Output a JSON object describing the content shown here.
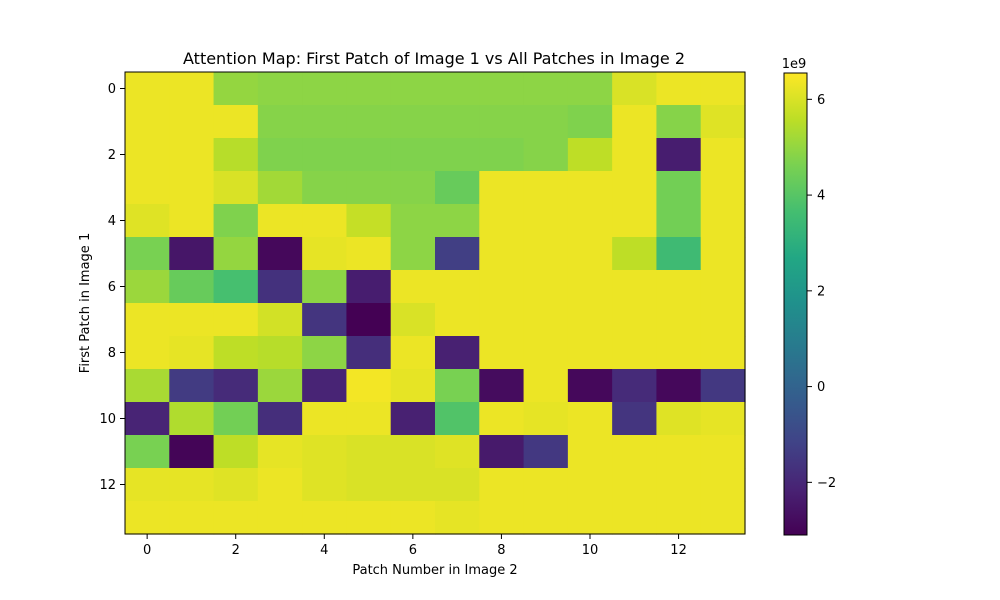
{
  "chart_data": {
    "type": "heatmap",
    "title": "Attention Map: First Patch of Image 1 vs All Patches in Image 2",
    "xlabel": "Patch Number in Image 2",
    "ylabel": "First Patch in Image 1",
    "x_ticks": [
      "0",
      "2",
      "4",
      "6",
      "8",
      "10",
      "12"
    ],
    "y_ticks": [
      "0",
      "2",
      "4",
      "6",
      "8",
      "10",
      "12"
    ],
    "colormap": "viridis",
    "colorbar": {
      "min": -3.1,
      "max": 6.55,
      "ticks": [
        "−2",
        "0",
        "2",
        "4",
        "6"
      ],
      "tick_values": [
        -2,
        0,
        2,
        4,
        6
      ],
      "multiplier": "1e9"
    },
    "grid": false,
    "values": [
      [
        6.3,
        6.3,
        5.0,
        4.9,
        4.9,
        4.9,
        4.9,
        4.9,
        4.9,
        4.9,
        4.9,
        6.0,
        6.3,
        6.3
      ],
      [
        6.3,
        6.3,
        6.3,
        4.8,
        4.8,
        4.8,
        4.8,
        4.8,
        4.8,
        4.8,
        4.7,
        6.3,
        4.8,
        6.1
      ],
      [
        6.3,
        6.3,
        5.5,
        4.7,
        4.7,
        4.7,
        4.7,
        4.7,
        4.7,
        4.8,
        5.6,
        6.3,
        -2.3,
        6.3
      ],
      [
        6.3,
        6.3,
        6.0,
        5.2,
        4.8,
        4.8,
        4.8,
        4.3,
        6.3,
        6.3,
        6.3,
        6.3,
        4.5,
        6.3
      ],
      [
        6.1,
        6.3,
        4.7,
        6.3,
        6.3,
        5.7,
        4.9,
        4.9,
        6.3,
        6.3,
        6.3,
        6.3,
        4.5,
        6.3
      ],
      [
        4.6,
        -2.5,
        5.0,
        -2.9,
        6.2,
        6.3,
        4.9,
        -1.3,
        6.3,
        6.3,
        6.3,
        5.6,
        3.5,
        6.3
      ],
      [
        5.1,
        4.3,
        3.7,
        -1.7,
        4.9,
        -2.3,
        6.3,
        6.3,
        6.3,
        6.3,
        6.3,
        6.3,
        6.3,
        6.3
      ],
      [
        6.3,
        6.3,
        6.3,
        5.9,
        -1.6,
        -3.1,
        6.0,
        6.3,
        6.3,
        6.3,
        6.3,
        6.3,
        6.3,
        6.3
      ],
      [
        6.3,
        6.2,
        5.6,
        5.5,
        4.9,
        -1.8,
        6.3,
        -2.2,
        6.3,
        6.3,
        6.3,
        6.3,
        6.3,
        6.3
      ],
      [
        5.3,
        -1.4,
        -1.9,
        5.1,
        -2.1,
        6.4,
        6.2,
        4.6,
        -2.8,
        6.3,
        -2.9,
        -1.9,
        -2.9,
        -1.5
      ],
      [
        -2.1,
        5.4,
        4.5,
        -1.8,
        6.3,
        6.3,
        -2.2,
        3.9,
        6.3,
        6.2,
        6.3,
        -1.6,
        6.1,
        6.2
      ],
      [
        4.6,
        -3.0,
        5.6,
        6.2,
        6.1,
        6.0,
        6.0,
        6.1,
        -2.4,
        -1.5,
        6.3,
        6.3,
        6.3,
        6.3
      ],
      [
        6.2,
        6.2,
        6.1,
        6.3,
        6.1,
        6.0,
        6.0,
        6.0,
        6.3,
        6.3,
        6.3,
        6.3,
        6.3,
        6.3
      ],
      [
        6.3,
        6.3,
        6.3,
        6.3,
        6.3,
        6.3,
        6.3,
        6.2,
        6.3,
        6.3,
        6.3,
        6.3,
        6.3,
        6.3
      ]
    ]
  }
}
